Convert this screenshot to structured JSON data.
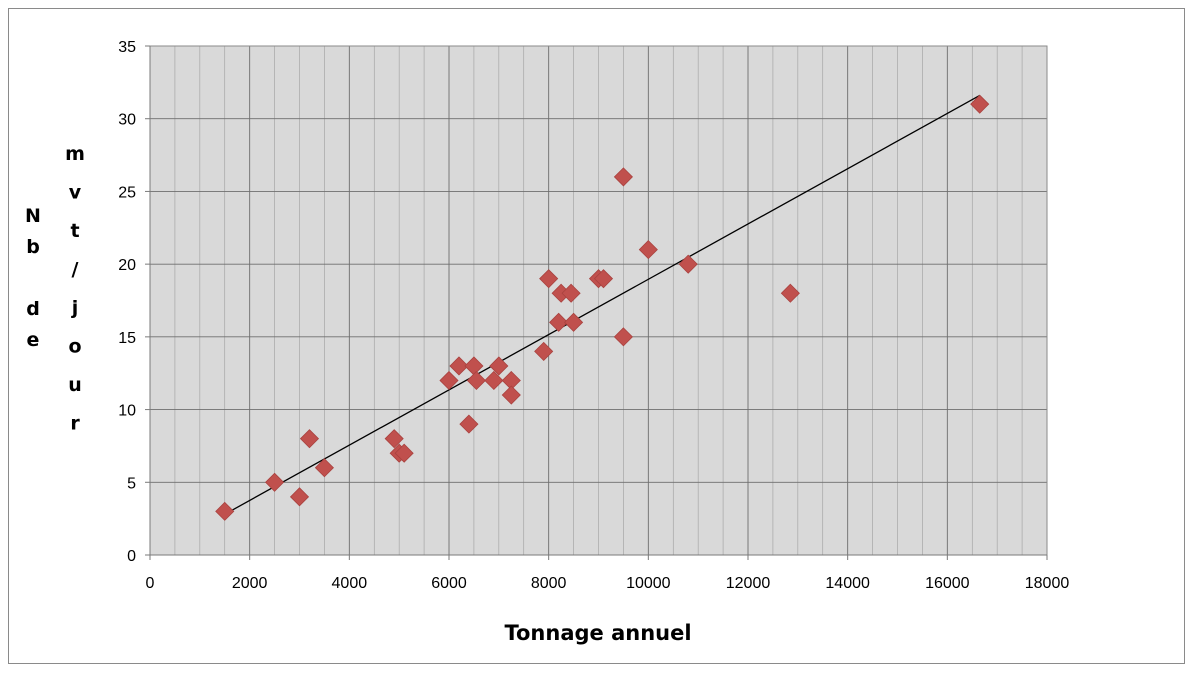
{
  "chart_data": {
    "type": "scatter",
    "xlabel": "Tonnage annuel",
    "ylabel": "Nb de mvt/jour",
    "xlim": [
      0,
      18000
    ],
    "ylim": [
      0,
      35
    ],
    "x_ticks": [
      "0",
      "2000",
      "4000",
      "6000",
      "8000",
      "10000",
      "12000",
      "14000",
      "16000",
      "18000"
    ],
    "y_ticks": [
      "0",
      "5",
      "10",
      "15",
      "20",
      "25",
      "30",
      "35"
    ],
    "grid": true,
    "legend": "none",
    "marker": "diamond",
    "marker_color": "#C0504D",
    "plot_background": "#D9D9D9",
    "trendline": {
      "type": "linear",
      "from": [
        1500,
        2.8
      ],
      "to": [
        16650,
        31.6
      ],
      "color": "#000000"
    },
    "points": [
      {
        "x": 1500,
        "y": 3
      },
      {
        "x": 2500,
        "y": 5
      },
      {
        "x": 3000,
        "y": 4
      },
      {
        "x": 3200,
        "y": 8
      },
      {
        "x": 3500,
        "y": 6
      },
      {
        "x": 4900,
        "y": 8
      },
      {
        "x": 5000,
        "y": 7
      },
      {
        "x": 5100,
        "y": 7
      },
      {
        "x": 6000,
        "y": 12
      },
      {
        "x": 6200,
        "y": 13
      },
      {
        "x": 6400,
        "y": 9
      },
      {
        "x": 6500,
        "y": 13
      },
      {
        "x": 6550,
        "y": 12
      },
      {
        "x": 6900,
        "y": 12
      },
      {
        "x": 7000,
        "y": 13
      },
      {
        "x": 7250,
        "y": 12
      },
      {
        "x": 7250,
        "y": 11
      },
      {
        "x": 7900,
        "y": 14
      },
      {
        "x": 8000,
        "y": 19
      },
      {
        "x": 8200,
        "y": 16
      },
      {
        "x": 8250,
        "y": 18
      },
      {
        "x": 8450,
        "y": 18
      },
      {
        "x": 8500,
        "y": 16
      },
      {
        "x": 9000,
        "y": 19
      },
      {
        "x": 9100,
        "y": 19
      },
      {
        "x": 9500,
        "y": 26
      },
      {
        "x": 9500,
        "y": 15
      },
      {
        "x": 10000,
        "y": 21
      },
      {
        "x": 10800,
        "y": 20
      },
      {
        "x": 12850,
        "y": 18
      },
      {
        "x": 16650,
        "y": 31
      }
    ]
  },
  "labels": {
    "ylabel_col1": [
      "N",
      "b",
      "",
      "d",
      "e"
    ],
    "ylabel_col2": [
      "m",
      "v",
      "t",
      "/",
      "j",
      "o",
      "u",
      "r"
    ]
  }
}
